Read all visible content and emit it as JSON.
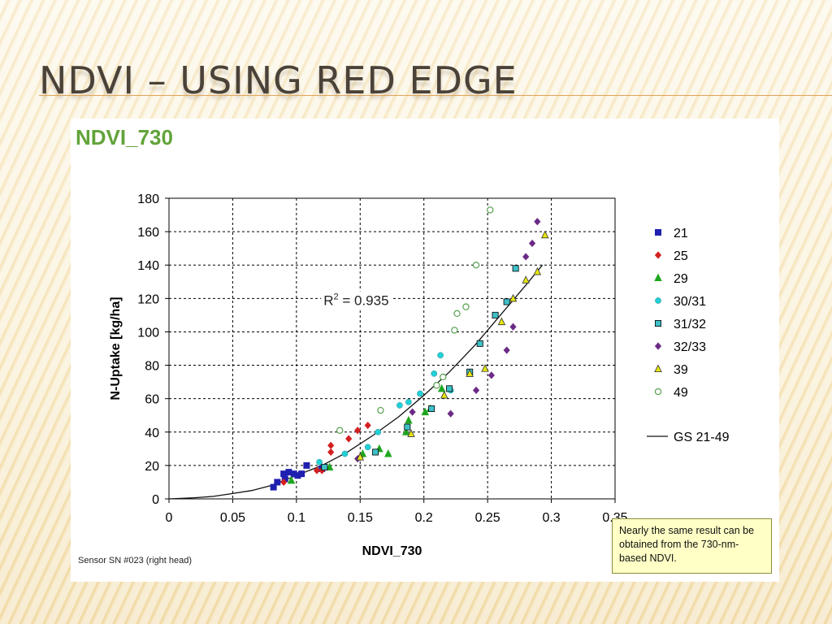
{
  "slide": {
    "title": "NDVI – USING RED EDGE"
  },
  "figure": {
    "heading": "NDVI_730",
    "sensor_note": "Sensor SN #023 (right head)",
    "note_box": "Nearly the same result can be obtained from the 730-nm-based NDVI."
  },
  "chart_data": {
    "type": "scatter",
    "xlabel": "NDVI_730",
    "ylabel": "N-Uptake [kg/ha]",
    "xlim": [
      0,
      0.35
    ],
    "ylim": [
      0,
      180
    ],
    "xticks": [
      "0",
      "0.05",
      "0.1",
      "0.15",
      "0.2",
      "0.25",
      "0.3",
      "0.35"
    ],
    "yticks": [
      "0",
      "20",
      "40",
      "60",
      "80",
      "100",
      "120",
      "140",
      "160",
      "180"
    ],
    "grid": true,
    "legend_position": "right",
    "annotation": {
      "text_main": "R",
      "text_sup": "2",
      "text_rest": " = 0.935",
      "x": 0.12,
      "y": 119
    },
    "series": [
      {
        "name": "21",
        "marker": "square",
        "color": "#1f1fb0",
        "points": [
          [
            0.082,
            7
          ],
          [
            0.085,
            10
          ],
          [
            0.09,
            15
          ],
          [
            0.091,
            12
          ],
          [
            0.094,
            16
          ],
          [
            0.098,
            15
          ],
          [
            0.101,
            14
          ],
          [
            0.104,
            15
          ],
          [
            0.108,
            20
          ],
          [
            0.12,
            18
          ]
        ]
      },
      {
        "name": "25",
        "marker": "diamond",
        "color": "#d42020",
        "points": [
          [
            0.09,
            10
          ],
          [
            0.116,
            17
          ],
          [
            0.12,
            17
          ],
          [
            0.127,
            28
          ],
          [
            0.127,
            32
          ],
          [
            0.141,
            36
          ],
          [
            0.148,
            41
          ],
          [
            0.156,
            44
          ],
          [
            0.15,
            25
          ]
        ]
      },
      {
        "name": "29",
        "marker": "triangle",
        "color": "#1fa61f",
        "points": [
          [
            0.096,
            11
          ],
          [
            0.126,
            19
          ],
          [
            0.152,
            27
          ],
          [
            0.165,
            30
          ],
          [
            0.172,
            27
          ],
          [
            0.186,
            40
          ],
          [
            0.188,
            47
          ],
          [
            0.201,
            52
          ],
          [
            0.205,
            54
          ],
          [
            0.214,
            66
          ]
        ]
      },
      {
        "name": "30/31",
        "marker": "circle",
        "color": "#22d0d8",
        "points": [
          [
            0.118,
            22
          ],
          [
            0.138,
            27
          ],
          [
            0.156,
            31
          ],
          [
            0.164,
            40
          ],
          [
            0.181,
            56
          ],
          [
            0.188,
            58
          ],
          [
            0.197,
            63
          ],
          [
            0.208,
            75
          ],
          [
            0.213,
            86
          ],
          [
            0.221,
            65
          ]
        ]
      },
      {
        "name": "31/32",
        "marker": "square",
        "color": "#3fc0c8",
        "points": [
          [
            0.122,
            19
          ],
          [
            0.162,
            28
          ],
          [
            0.187,
            43
          ],
          [
            0.206,
            54
          ],
          [
            0.22,
            66
          ],
          [
            0.236,
            76
          ],
          [
            0.244,
            93
          ],
          [
            0.256,
            110
          ],
          [
            0.265,
            118
          ],
          [
            0.272,
            138
          ]
        ]
      },
      {
        "name": "32/33",
        "marker": "diamond",
        "color": "#6b2a86",
        "points": [
          [
            0.148,
            24
          ],
          [
            0.191,
            52
          ],
          [
            0.221,
            51
          ],
          [
            0.241,
            65
          ],
          [
            0.253,
            74
          ],
          [
            0.265,
            89
          ],
          [
            0.27,
            103
          ],
          [
            0.28,
            145
          ],
          [
            0.285,
            153
          ],
          [
            0.289,
            166
          ]
        ]
      },
      {
        "name": "39",
        "marker": "triangle",
        "color": "#e6e610",
        "points": [
          [
            0.15,
            25
          ],
          [
            0.19,
            39
          ],
          [
            0.216,
            62
          ],
          [
            0.236,
            75
          ],
          [
            0.248,
            78
          ],
          [
            0.261,
            106
          ],
          [
            0.27,
            120
          ],
          [
            0.28,
            131
          ],
          [
            0.289,
            136
          ],
          [
            0.295,
            158
          ]
        ]
      },
      {
        "name": "49",
        "marker": "circle-open",
        "color": "#58a050",
        "points": [
          [
            0.134,
            41
          ],
          [
            0.166,
            53
          ],
          [
            0.21,
            68
          ],
          [
            0.215,
            73
          ],
          [
            0.224,
            101
          ],
          [
            0.226,
            111
          ],
          [
            0.233,
            115
          ],
          [
            0.241,
            140
          ],
          [
            0.252,
            173
          ]
        ]
      },
      {
        "name": "GS 21-49",
        "marker": "line",
        "color": "#111111",
        "points": [
          [
            0,
            0
          ],
          [
            0.02,
            0.7
          ],
          [
            0.035,
            1.5
          ],
          [
            0.05,
            3.2
          ],
          [
            0.065,
            5
          ],
          [
            0.08,
            8
          ],
          [
            0.1,
            14
          ],
          [
            0.12,
            20
          ],
          [
            0.14,
            28
          ],
          [
            0.16,
            38
          ],
          [
            0.18,
            49
          ],
          [
            0.2,
            62
          ],
          [
            0.22,
            76
          ],
          [
            0.24,
            92
          ],
          [
            0.26,
            110
          ],
          [
            0.28,
            128
          ],
          [
            0.293,
            140
          ]
        ]
      }
    ]
  }
}
